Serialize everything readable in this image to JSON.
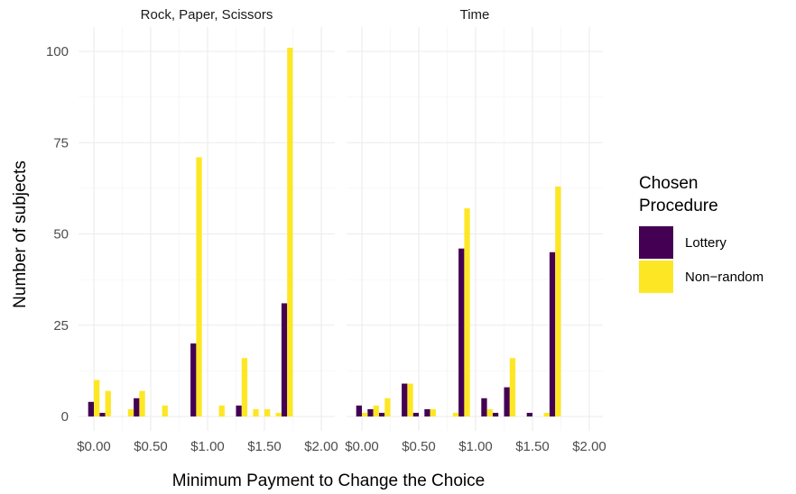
{
  "chart_data": {
    "type": "bar",
    "xlabel": "Minimum Payment to Change the Choice",
    "ylabel": "Number of subjects",
    "ylim": [
      0,
      105
    ],
    "y_ticks": [
      0,
      25,
      50,
      75,
      100
    ],
    "x_ticks": [
      "$0.00",
      "$0.50",
      "$1.00",
      "$1.50",
      "$2.00"
    ],
    "x_tick_values": [
      0,
      0.5,
      1.0,
      1.5,
      2.0
    ],
    "x_values": [
      0,
      0.1,
      0.2,
      0.3,
      0.4,
      0.5,
      0.6,
      0.7,
      0.8,
      0.9,
      1.0,
      1.1,
      1.2,
      1.3,
      1.4,
      1.5,
      1.6,
      1.7,
      1.8,
      1.9,
      2.0
    ],
    "grid": true,
    "legend": {
      "title_lines": [
        "Chosen",
        "Procedure"
      ],
      "position": "right",
      "entries": [
        {
          "name": "Lottery",
          "color": "#440154"
        },
        {
          "name": "Non−random",
          "color": "#FDE725"
        }
      ]
    },
    "panels": [
      {
        "title": "Rock, Paper, Scissors",
        "series": [
          {
            "name": "Lottery",
            "color": "#440154",
            "values": [
              4,
              1,
              0,
              0,
              5,
              0,
              0,
              0,
              0,
              20,
              0,
              0,
              0,
              3,
              0,
              0,
              0,
              31,
              0,
              0,
              0
            ]
          },
          {
            "name": "Non−random",
            "color": "#FDE725",
            "values": [
              10,
              7,
              0,
              2,
              7,
              0,
              3,
              0,
              0,
              71,
              0,
              3,
              0,
              16,
              2,
              2,
              1,
              101,
              0,
              0,
              0
            ]
          }
        ]
      },
      {
        "title": "Time",
        "series": [
          {
            "name": "Lottery",
            "color": "#440154",
            "values": [
              3,
              2,
              1,
              0,
              9,
              1,
              2,
              0,
              0,
              46,
              0,
              5,
              1,
              8,
              0,
              1,
              0,
              45,
              0,
              0,
              0
            ]
          },
          {
            "name": "Non−random",
            "color": "#FDE725",
            "values": [
              1,
              3,
              5,
              0,
              9,
              0,
              2,
              0,
              1,
              57,
              0,
              2,
              0,
              16,
              0,
              0,
              1,
              63,
              0,
              0,
              0
            ]
          }
        ]
      }
    ]
  }
}
